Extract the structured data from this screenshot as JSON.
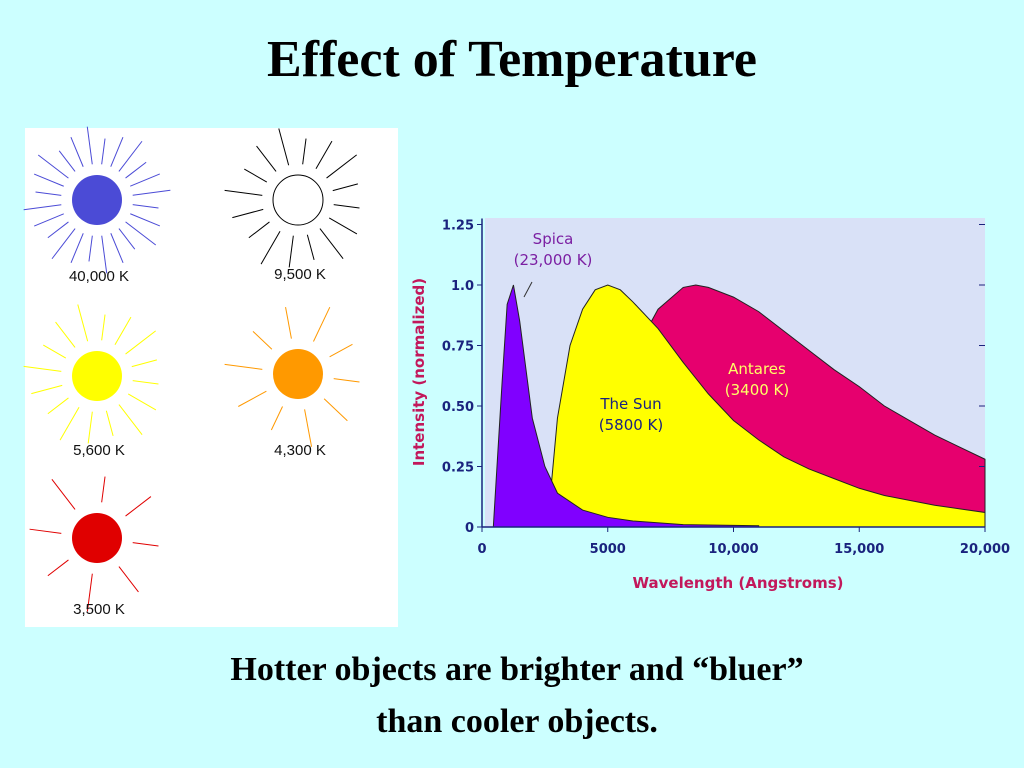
{
  "title": "Effect of Temperature",
  "stars": [
    {
      "label": "40,000 K",
      "color": "#4b4bd6"
    },
    {
      "label": "9,500 K",
      "color": "#ffffff"
    },
    {
      "label": "5,600 K",
      "color": "#ffff00"
    },
    {
      "label": "4,300 K",
      "color": "#ff9900"
    },
    {
      "label": "3,500 K",
      "color": "#e00000"
    }
  ],
  "caption": [
    "Hotter objects are brighter and “bluer”",
    "than cooler objects."
  ],
  "chart_data": {
    "type": "area",
    "xlabel": "Wavelength (Angstroms)",
    "ylabel": "Intensity (normalized)",
    "xlim": [
      0,
      20000
    ],
    "ylim": [
      0,
      1.25
    ],
    "xticks": [
      0,
      5000,
      {
        "value": 10000,
        "label": "10,000"
      },
      {
        "value": 15000,
        "label": "15,000"
      },
      {
        "value": 20000,
        "label": "20,000"
      }
    ],
    "yticks": [
      0,
      0.25,
      {
        "value": 0.5,
        "label": "0.50"
      },
      0.75,
      {
        "value": 1.0,
        "label": "1.0"
      },
      1.25
    ],
    "series": [
      {
        "name": "Antares",
        "label": "(3400 K)",
        "color": "#e6006e",
        "x": [
          4000,
          5000,
          6000,
          7000,
          8000,
          8500,
          9000,
          10000,
          11000,
          12000,
          13000,
          14000,
          15000,
          16000,
          17000,
          18000,
          19000,
          20000
        ],
        "values": [
          0.16,
          0.43,
          0.71,
          0.9,
          0.99,
          1.0,
          0.99,
          0.95,
          0.89,
          0.81,
          0.73,
          0.65,
          0.58,
          0.5,
          0.44,
          0.38,
          0.33,
          0.28
        ]
      },
      {
        "name": "The Sun",
        "label": "(5800 K)",
        "color": "#ffff00",
        "x": [
          2600,
          3000,
          3500,
          4000,
          4500,
          5000,
          5500,
          6000,
          7000,
          8000,
          9000,
          10000,
          11000,
          12000,
          13000,
          14000,
          15000,
          16000,
          17000,
          18000,
          19000,
          20000
        ],
        "values": [
          0,
          0.45,
          0.75,
          0.9,
          0.98,
          1.0,
          0.98,
          0.93,
          0.82,
          0.68,
          0.55,
          0.44,
          0.36,
          0.29,
          0.24,
          0.2,
          0.16,
          0.13,
          0.11,
          0.09,
          0.075,
          0.06
        ]
      },
      {
        "name": "Spica",
        "label": "(23,000 K)",
        "color": "#8000ff",
        "x": [
          450,
          800,
          1000,
          1250,
          1500,
          2000,
          2500,
          3000,
          4000,
          5000,
          6000,
          8000,
          11000
        ],
        "values": [
          0,
          0.6,
          0.92,
          1.0,
          0.85,
          0.45,
          0.25,
          0.14,
          0.07,
          0.04,
          0.025,
          0.01,
          0.005
        ]
      }
    ]
  }
}
